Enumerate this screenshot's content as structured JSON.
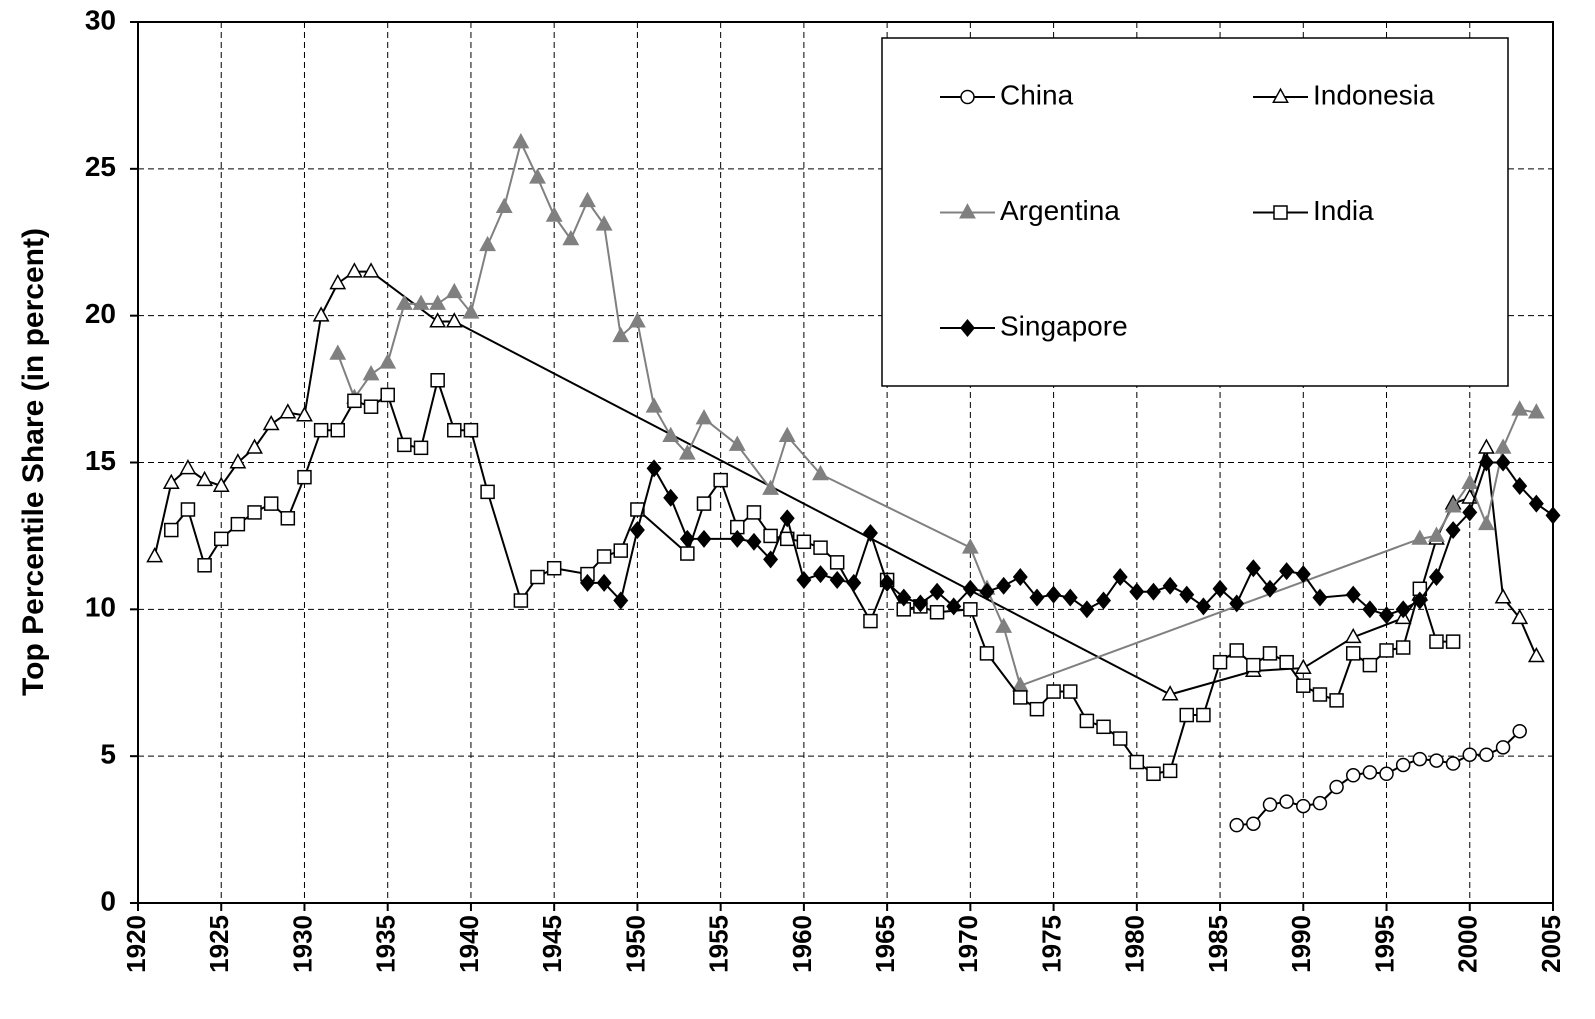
{
  "chart_data": {
    "type": "line",
    "y_label": "Top Percentile Share (in percent)",
    "xlim": [
      1920,
      2005
    ],
    "xticks": [
      1920,
      1925,
      1930,
      1935,
      1940,
      1945,
      1950,
      1955,
      1960,
      1965,
      1970,
      1975,
      1980,
      1985,
      1990,
      1995,
      2000,
      2005
    ],
    "ylim": [
      0,
      30
    ],
    "yticks": [
      0,
      5,
      10,
      15,
      20,
      25,
      30
    ],
    "grid": true,
    "legend": "upper right",
    "series": [
      {
        "name": "China",
        "color": "#000000",
        "marker": "circle",
        "filled": false,
        "x": [
          1986,
          1987,
          1988,
          1989,
          1990,
          1991,
          1992,
          1993,
          1994,
          1995,
          1996,
          1997,
          1998,
          1999,
          2000,
          2001,
          2002,
          2003
        ],
        "values": [
          2.65,
          2.7,
          3.35,
          3.45,
          3.3,
          3.4,
          3.95,
          4.35,
          4.45,
          4.4,
          4.7,
          4.9,
          4.85,
          4.75,
          5.05,
          5.05,
          5.3,
          5.85
        ]
      },
      {
        "name": "Indonesia",
        "color": "#000000",
        "marker": "triangle",
        "filled": false,
        "x": [
          1921,
          1922,
          1923,
          1924,
          1925,
          1926,
          1927,
          1928,
          1929,
          1930,
          1931,
          1932,
          1933,
          1934,
          1938,
          1939,
          1982,
          1987,
          1990,
          1993,
          1996,
          1997,
          1998,
          1999,
          2000,
          2001,
          2002,
          2003,
          2004
        ],
        "values": [
          11.8,
          14.3,
          14.8,
          14.4,
          14.2,
          15.0,
          15.5,
          16.3,
          16.7,
          16.6,
          20.0,
          21.1,
          21.5,
          21.5,
          19.8,
          19.8,
          7.1,
          7.9,
          8.0,
          9.05,
          9.7,
          10.5,
          12.4,
          13.6,
          13.8,
          15.5,
          10.4,
          9.7,
          8.4
        ]
      },
      {
        "name": "Argentina",
        "color": "#808080",
        "marker": "triangle",
        "filled": true,
        "x": [
          1932,
          1933,
          1934,
          1935,
          1936,
          1937,
          1938,
          1939,
          1940,
          1941,
          1942,
          1943,
          1944,
          1945,
          1946,
          1947,
          1948,
          1949,
          1950,
          1951,
          1952,
          1953,
          1954,
          1956,
          1958,
          1959,
          1961,
          1970,
          1971,
          1972,
          1973,
          1997,
          1998,
          1999,
          2000,
          2001,
          2002,
          2003,
          2004
        ],
        "values": [
          18.7,
          17.2,
          18.0,
          18.4,
          20.4,
          20.4,
          20.4,
          20.8,
          20.1,
          22.4,
          23.7,
          25.9,
          24.7,
          23.4,
          22.6,
          23.9,
          23.1,
          19.3,
          19.8,
          16.9,
          15.9,
          15.3,
          16.5,
          15.6,
          14.1,
          15.9,
          14.6,
          12.1,
          10.7,
          9.4,
          7.4,
          12.4,
          12.5,
          13.5,
          14.3,
          12.9,
          15.5,
          16.8,
          16.7
        ]
      },
      {
        "name": "India",
        "color": "#000000",
        "marker": "square",
        "filled": false,
        "x": [
          1922,
          1923,
          1924,
          1925,
          1926,
          1927,
          1928,
          1929,
          1930,
          1931,
          1932,
          1933,
          1934,
          1935,
          1936,
          1937,
          1938,
          1939,
          1940,
          1941,
          1943,
          1944,
          1945,
          1947,
          1948,
          1949,
          1950,
          1953,
          1954,
          1955,
          1956,
          1957,
          1958,
          1959,
          1960,
          1961,
          1962,
          1964,
          1965,
          1966,
          1967,
          1968,
          1970,
          1971,
          1973,
          1974,
          1975,
          1976,
          1977,
          1978,
          1979,
          1980,
          1981,
          1982,
          1983,
          1984,
          1985,
          1986,
          1987,
          1988,
          1989,
          1990,
          1991,
          1992,
          1993,
          1994,
          1995,
          1996,
          1997,
          1998,
          1999
        ],
        "values": [
          12.7,
          13.4,
          11.5,
          12.4,
          12.9,
          13.3,
          13.6,
          13.1,
          14.5,
          16.1,
          16.1,
          17.1,
          16.9,
          17.3,
          15.6,
          15.5,
          17.8,
          16.1,
          16.1,
          14.0,
          10.3,
          11.1,
          11.4,
          11.2,
          11.8,
          12.0,
          13.4,
          11.9,
          13.6,
          14.4,
          12.8,
          13.3,
          12.5,
          12.4,
          12.3,
          12.1,
          11.6,
          9.6,
          11.0,
          10.0,
          10.1,
          9.9,
          10.0,
          8.5,
          7.0,
          6.6,
          7.2,
          7.2,
          6.2,
          6.0,
          5.6,
          4.8,
          4.4,
          4.5,
          6.4,
          6.4,
          8.2,
          8.6,
          8.1,
          8.5,
          8.2,
          7.4,
          7.1,
          6.9,
          8.5,
          8.1,
          8.6,
          8.7,
          10.7,
          8.9,
          8.9
        ]
      },
      {
        "name": "Singapore",
        "color": "#000000",
        "marker": "diamond",
        "filled": true,
        "x": [
          1947,
          1948,
          1949,
          1950,
          1951,
          1952,
          1953,
          1954,
          1956,
          1957,
          1958,
          1959,
          1960,
          1961,
          1962,
          1963,
          1964,
          1965,
          1966,
          1967,
          1968,
          1969,
          1970,
          1971,
          1972,
          1973,
          1974,
          1975,
          1976,
          1977,
          1978,
          1979,
          1980,
          1981,
          1982,
          1983,
          1984,
          1985,
          1986,
          1987,
          1988,
          1989,
          1990,
          1991,
          1993,
          1994,
          1995,
          1996,
          1997,
          1998,
          1999,
          2000,
          2001,
          2002,
          2003,
          2004,
          2005
        ],
        "values": [
          10.9,
          10.9,
          10.3,
          12.7,
          14.8,
          13.8,
          12.4,
          12.4,
          12.4,
          12.3,
          11.7,
          13.1,
          11.0,
          11.2,
          11.0,
          10.9,
          12.6,
          10.9,
          10.4,
          10.2,
          10.6,
          10.1,
          10.7,
          10.6,
          10.8,
          11.1,
          10.4,
          10.5,
          10.4,
          10.0,
          10.3,
          11.1,
          10.6,
          10.6,
          10.8,
          10.5,
          10.1,
          10.7,
          10.2,
          11.4,
          10.7,
          11.3,
          11.2,
          10.4,
          10.5,
          10.0,
          9.8,
          10.0,
          10.3,
          11.1,
          12.7,
          13.3,
          15.0,
          15.0,
          14.2,
          13.6,
          13.2
        ]
      }
    ]
  }
}
